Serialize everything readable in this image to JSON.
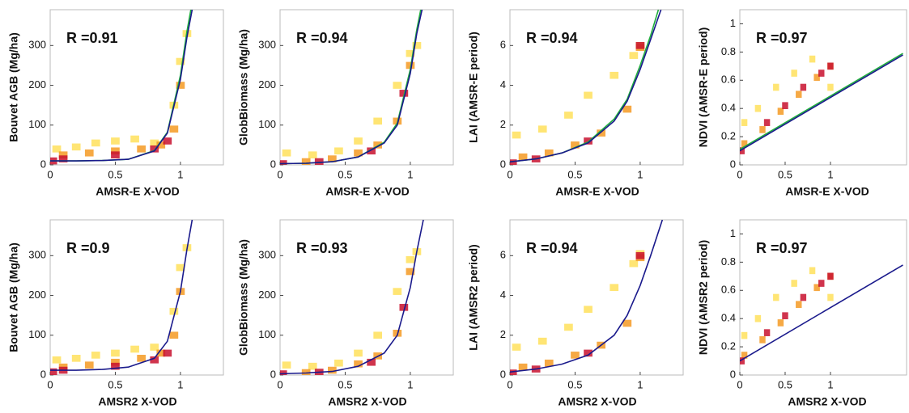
{
  "chart_data": [
    {
      "type": "density",
      "annotation": "R =0.91",
      "xlabel": "AMSR-E X-VOD",
      "ylabel": "Bouvet AGB (Mg/ha)",
      "xlim": [
        0,
        1.33
      ],
      "ylim": [
        0,
        390
      ],
      "xticks": [
        0,
        0.5,
        1
      ],
      "yticks": [
        0,
        100,
        200,
        300
      ],
      "series": [
        {
          "type": "scatter",
          "color": "#ffe15c",
          "x": [
            0.05,
            0.2,
            0.35,
            0.5,
            0.65,
            0.8,
            0.95,
            1.0,
            1.05
          ],
          "values": [
            40,
            45,
            55,
            60,
            65,
            55,
            150,
            260,
            330
          ]
        },
        {
          "type": "scatter",
          "color": "#f59a23",
          "x": [
            0.1,
            0.3,
            0.5,
            0.7,
            0.85,
            0.95,
            1.0
          ],
          "values": [
            25,
            30,
            35,
            40,
            50,
            90,
            200
          ]
        },
        {
          "type": "scatter",
          "color": "#c8102e",
          "x": [
            0.02,
            0.1,
            0.5,
            0.8,
            0.9
          ],
          "values": [
            10,
            15,
            25,
            40,
            60
          ]
        },
        {
          "type": "line",
          "color": "#1fae3c",
          "x": [
            0,
            0.2,
            0.4,
            0.6,
            0.8,
            0.9,
            1.0,
            1.05,
            1.08
          ],
          "values": [
            10,
            10,
            11,
            14,
            36,
            82,
            225,
            335,
            390
          ]
        },
        {
          "type": "line",
          "color": "#1a1a8c",
          "x": [
            0,
            0.2,
            0.4,
            0.6,
            0.8,
            0.9,
            1.0,
            1.05,
            1.09
          ],
          "values": [
            10,
            10,
            11,
            14,
            35,
            80,
            215,
            320,
            390
          ]
        }
      ]
    },
    {
      "type": "density",
      "annotation": "R =0.94",
      "xlabel": "AMSR-E X-VOD",
      "ylabel": "GlobBiomass (Mg/ha)",
      "xlim": [
        0,
        1.33
      ],
      "ylim": [
        0,
        390
      ],
      "xticks": [
        0,
        0.5,
        1
      ],
      "yticks": [
        0,
        100,
        200,
        300
      ],
      "series": [
        {
          "type": "scatter",
          "color": "#ffe15c",
          "x": [
            0.05,
            0.25,
            0.45,
            0.6,
            0.75,
            0.9,
            1.0,
            1.05
          ],
          "values": [
            30,
            25,
            35,
            60,
            110,
            200,
            280,
            300
          ]
        },
        {
          "type": "scatter",
          "color": "#f59a23",
          "x": [
            0.2,
            0.4,
            0.6,
            0.75,
            0.9,
            1.0
          ],
          "values": [
            8,
            15,
            30,
            50,
            110,
            250
          ]
        },
        {
          "type": "scatter",
          "color": "#c8102e",
          "x": [
            0.02,
            0.3,
            0.7,
            0.95
          ],
          "values": [
            3,
            8,
            35,
            180
          ]
        },
        {
          "type": "line",
          "color": "#1fae3c",
          "x": [
            0,
            0.2,
            0.4,
            0.6,
            0.8,
            0.9,
            1.0,
            1.05,
            1.08
          ],
          "values": [
            3,
            4,
            8,
            20,
            57,
            105,
            240,
            340,
            390
          ]
        },
        {
          "type": "line",
          "color": "#1a1a8c",
          "x": [
            0,
            0.2,
            0.4,
            0.6,
            0.8,
            0.9,
            1.0,
            1.05,
            1.09
          ],
          "values": [
            3,
            4,
            8,
            20,
            55,
            100,
            230,
            330,
            390
          ]
        }
      ]
    },
    {
      "type": "density",
      "annotation": "R =0.94",
      "xlabel": "AMSR-E X-VOD",
      "ylabel": "LAI (AMSR-E period)",
      "xlim": [
        0,
        1.33
      ],
      "ylim": [
        0,
        7.8
      ],
      "xticks": [
        0,
        0.5,
        1
      ],
      "yticks": [
        0,
        2,
        4,
        6
      ],
      "series": [
        {
          "type": "scatter",
          "color": "#ffe15c",
          "x": [
            0.05,
            0.25,
            0.45,
            0.6,
            0.8,
            0.95,
            1.0
          ],
          "values": [
            1.5,
            1.8,
            2.5,
            3.5,
            4.5,
            5.5,
            6.0
          ]
        },
        {
          "type": "scatter",
          "color": "#f59a23",
          "x": [
            0.1,
            0.3,
            0.5,
            0.7,
            0.9,
            1.0
          ],
          "values": [
            0.4,
            0.6,
            1.0,
            1.6,
            2.8,
            5.9
          ]
        },
        {
          "type": "scatter",
          "color": "#c8102e",
          "x": [
            0.02,
            0.2,
            0.6,
            1.0
          ],
          "values": [
            0.1,
            0.3,
            1.2,
            6.0
          ]
        },
        {
          "type": "line",
          "color": "#1fae3c",
          "x": [
            0,
            0.2,
            0.4,
            0.6,
            0.8,
            0.9,
            1.0,
            1.08,
            1.14
          ],
          "values": [
            0.15,
            0.3,
            0.6,
            1.15,
            2.3,
            3.3,
            5.0,
            6.5,
            7.8
          ]
        },
        {
          "type": "line",
          "color": "#1a1a8c",
          "x": [
            0,
            0.2,
            0.4,
            0.6,
            0.8,
            0.9,
            1.0,
            1.08,
            1.16
          ],
          "values": [
            0.15,
            0.3,
            0.6,
            1.1,
            2.2,
            3.2,
            4.8,
            6.3,
            7.8
          ]
        }
      ]
    },
    {
      "type": "density",
      "annotation": "R =0.97",
      "xlabel": "AMSR-E X-VOD",
      "ylabel": "NDVI (AMSR-E period)",
      "xlim": [
        0,
        1.84
      ],
      "ylim": [
        0,
        1.1
      ],
      "xticks": [
        0,
        0.5,
        1
      ],
      "yticks": [
        0,
        0.2,
        0.4,
        0.6,
        0.8,
        1
      ],
      "series": [
        {
          "type": "scatter",
          "color": "#ffe15c",
          "x": [
            0.05,
            0.2,
            0.4,
            0.6,
            0.8,
            1.0
          ],
          "values": [
            0.3,
            0.4,
            0.55,
            0.65,
            0.75,
            0.55
          ]
        },
        {
          "type": "scatter",
          "color": "#f59a23",
          "x": [
            0.05,
            0.25,
            0.45,
            0.65,
            0.85,
            1.0
          ],
          "values": [
            0.15,
            0.25,
            0.38,
            0.5,
            0.62,
            0.7
          ]
        },
        {
          "type": "scatter",
          "color": "#c8102e",
          "x": [
            0.02,
            0.3,
            0.5,
            0.7,
            0.9,
            1.0
          ],
          "values": [
            0.1,
            0.3,
            0.42,
            0.55,
            0.65,
            0.7
          ]
        },
        {
          "type": "line",
          "color": "#1fae3c",
          "x": [
            0,
            1.8
          ],
          "values": [
            0.11,
            0.79
          ]
        },
        {
          "type": "line",
          "color": "#1a1a8c",
          "x": [
            0,
            1.8
          ],
          "values": [
            0.1,
            0.78
          ]
        }
      ]
    },
    {
      "type": "density",
      "annotation": "R =0.9",
      "xlabel": "AMSR2 X-VOD",
      "ylabel": "Bouvet AGB (Mg/ha)",
      "xlim": [
        0,
        1.33
      ],
      "ylim": [
        0,
        390
      ],
      "xticks": [
        0,
        0.5,
        1
      ],
      "yticks": [
        0,
        100,
        200,
        300
      ],
      "series": [
        {
          "type": "scatter",
          "color": "#ffe15c",
          "x": [
            0.05,
            0.2,
            0.35,
            0.5,
            0.65,
            0.8,
            0.95,
            1.0,
            1.05
          ],
          "values": [
            38,
            42,
            50,
            55,
            65,
            70,
            160,
            270,
            320
          ]
        },
        {
          "type": "scatter",
          "color": "#f59a23",
          "x": [
            0.1,
            0.3,
            0.5,
            0.7,
            0.85,
            0.95,
            1.0
          ],
          "values": [
            20,
            25,
            32,
            42,
            55,
            100,
            210
          ]
        },
        {
          "type": "scatter",
          "color": "#c8102e",
          "x": [
            0.02,
            0.1,
            0.5,
            0.8,
            0.9
          ],
          "values": [
            8,
            12,
            22,
            38,
            55
          ]
        },
        {
          "type": "line",
          "color": "#1a1a8c",
          "x": [
            0,
            0.2,
            0.4,
            0.6,
            0.8,
            0.9,
            1.0,
            1.05,
            1.09
          ],
          "values": [
            12,
            12,
            14,
            20,
            42,
            85,
            210,
            315,
            390
          ]
        }
      ]
    },
    {
      "type": "density",
      "annotation": "R =0.93",
      "xlabel": "AMSR2 X-VOD",
      "ylabel": "GlobBiomass (Mg/ha)",
      "xlim": [
        0,
        1.33
      ],
      "ylim": [
        0,
        390
      ],
      "xticks": [
        0,
        0.5,
        1
      ],
      "yticks": [
        0,
        100,
        200,
        300
      ],
      "series": [
        {
          "type": "scatter",
          "color": "#ffe15c",
          "x": [
            0.05,
            0.25,
            0.45,
            0.6,
            0.75,
            0.9,
            1.0,
            1.05
          ],
          "values": [
            25,
            22,
            30,
            55,
            100,
            210,
            290,
            310
          ]
        },
        {
          "type": "scatter",
          "color": "#f59a23",
          "x": [
            0.2,
            0.4,
            0.6,
            0.75,
            0.9,
            1.0
          ],
          "values": [
            6,
            12,
            28,
            48,
            105,
            260
          ]
        },
        {
          "type": "scatter",
          "color": "#c8102e",
          "x": [
            0.02,
            0.3,
            0.7,
            0.95
          ],
          "values": [
            3,
            7,
            32,
            170
          ]
        },
        {
          "type": "line",
          "color": "#1a1a8c",
          "x": [
            0,
            0.2,
            0.4,
            0.6,
            0.8,
            0.9,
            1.0,
            1.05,
            1.1
          ],
          "values": [
            3,
            5,
            9,
            22,
            55,
            100,
            220,
            310,
            390
          ]
        }
      ]
    },
    {
      "type": "density",
      "annotation": "R =0.94",
      "xlabel": "AMSR2 X-VOD",
      "ylabel": "LAI (AMSR2 period)",
      "xlim": [
        0,
        1.33
      ],
      "ylim": [
        0,
        7.8
      ],
      "xticks": [
        0,
        0.5,
        1
      ],
      "yticks": [
        0,
        2,
        4,
        6
      ],
      "series": [
        {
          "type": "scatter",
          "color": "#ffe15c",
          "x": [
            0.05,
            0.25,
            0.45,
            0.6,
            0.8,
            0.95,
            1.0
          ],
          "values": [
            1.4,
            1.7,
            2.4,
            3.3,
            4.4,
            5.6,
            6.1
          ]
        },
        {
          "type": "scatter",
          "color": "#f59a23",
          "x": [
            0.1,
            0.3,
            0.5,
            0.7,
            0.9,
            1.0
          ],
          "values": [
            0.4,
            0.6,
            1.0,
            1.5,
            2.6,
            5.9
          ]
        },
        {
          "type": "scatter",
          "color": "#c8102e",
          "x": [
            0.02,
            0.2,
            0.6,
            1.0
          ],
          "values": [
            0.1,
            0.3,
            1.1,
            6.0
          ]
        },
        {
          "type": "line",
          "color": "#1a1a8c",
          "x": [
            0,
            0.2,
            0.4,
            0.6,
            0.8,
            0.9,
            1.0,
            1.08,
            1.17
          ],
          "values": [
            0.15,
            0.3,
            0.55,
            1.0,
            2.0,
            3.0,
            4.5,
            6.0,
            7.8
          ]
        }
      ]
    },
    {
      "type": "density",
      "annotation": "R =0.97",
      "xlabel": "AMSR2 X-VOD",
      "ylabel": "NDVI (AMSR2 period)",
      "xlim": [
        0,
        1.84
      ],
      "ylim": [
        0,
        1.1
      ],
      "xticks": [
        0,
        0.5,
        1
      ],
      "yticks": [
        0,
        0.2,
        0.4,
        0.6,
        0.8,
        1
      ],
      "series": [
        {
          "type": "scatter",
          "color": "#ffe15c",
          "x": [
            0.05,
            0.2,
            0.4,
            0.6,
            0.8,
            1.0
          ],
          "values": [
            0.28,
            0.4,
            0.55,
            0.65,
            0.74,
            0.55
          ]
        },
        {
          "type": "scatter",
          "color": "#f59a23",
          "x": [
            0.05,
            0.25,
            0.45,
            0.65,
            0.85,
            1.0
          ],
          "values": [
            0.14,
            0.25,
            0.37,
            0.5,
            0.62,
            0.7
          ]
        },
        {
          "type": "scatter",
          "color": "#c8102e",
          "x": [
            0.02,
            0.3,
            0.5,
            0.7,
            0.9,
            1.0
          ],
          "values": [
            0.1,
            0.3,
            0.42,
            0.55,
            0.65,
            0.7
          ]
        },
        {
          "type": "line",
          "color": "#1a1a8c",
          "x": [
            0,
            1.8
          ],
          "values": [
            0.1,
            0.78
          ]
        }
      ]
    }
  ]
}
